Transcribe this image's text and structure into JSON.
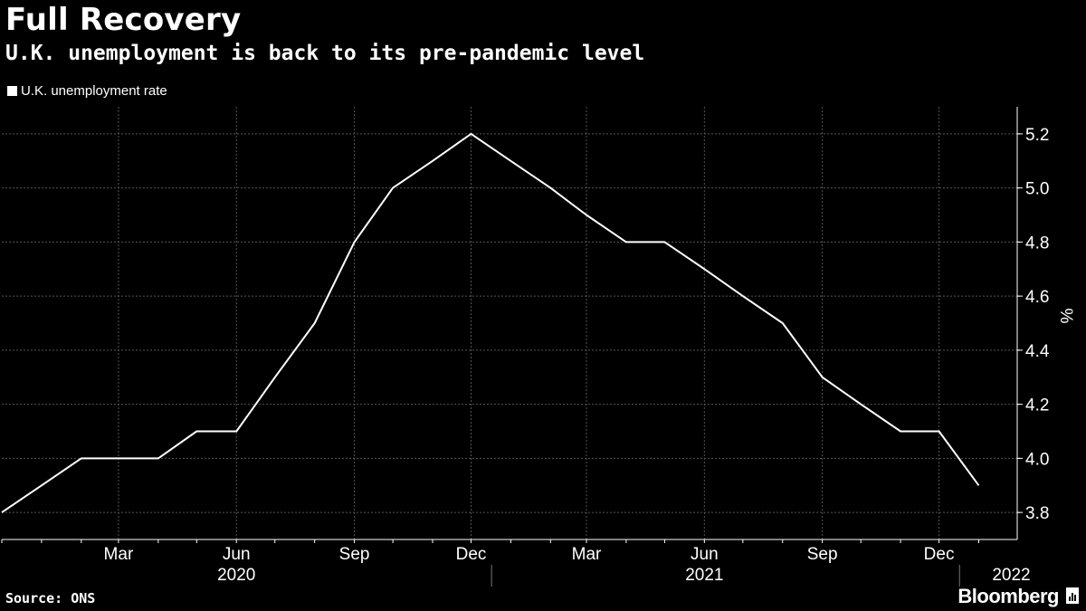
{
  "header": {
    "title": "Full Recovery",
    "subtitle": "U.K. unemployment is back to its pre-pandemic level"
  },
  "legend": {
    "label": "U.K. unemployment rate"
  },
  "footer": {
    "source": "Source: ONS",
    "brand": "Bloomberg"
  },
  "colors": {
    "background": "#000000",
    "line": "#ffffff",
    "grid": "#555555"
  },
  "chart_data": {
    "type": "line",
    "title": "Full Recovery",
    "subtitle": "U.K. unemployment is back to its pre-pandemic level",
    "ylabel": "%",
    "ylim": [
      3.7,
      5.3
    ],
    "yticks": [
      3.8,
      4.0,
      4.2,
      4.4,
      4.6,
      4.8,
      5.0,
      5.2
    ],
    "xlim": [
      "2019-12-01",
      "2022-01-31"
    ],
    "x_tick_labels": [
      {
        "label": "Mar",
        "date": "2020-03-01"
      },
      {
        "label": "Jun",
        "date": "2020-06-01"
      },
      {
        "label": "Sep",
        "date": "2020-09-01"
      },
      {
        "label": "Dec",
        "date": "2020-12-01"
      },
      {
        "label": "Mar",
        "date": "2021-03-01"
      },
      {
        "label": "Jun",
        "date": "2021-06-01"
      },
      {
        "label": "Sep",
        "date": "2021-09-01"
      },
      {
        "label": "Dec",
        "date": "2021-12-01"
      }
    ],
    "year_labels": [
      {
        "label": "2020",
        "date": "2020-06-01"
      },
      {
        "label": "2021",
        "date": "2021-06-01"
      },
      {
        "label": "2022",
        "date": "2022-01-01"
      }
    ],
    "year_separators": [
      "2021-01-01",
      "2022-01-01"
    ],
    "grid": true,
    "legend_position": "top-left",
    "series": [
      {
        "name": "U.K. unemployment rate",
        "color": "#ffffff",
        "x": [
          "2019-12-01",
          "2020-01-01",
          "2020-02-01",
          "2020-03-01",
          "2020-04-01",
          "2020-05-01",
          "2020-06-01",
          "2020-07-01",
          "2020-08-01",
          "2020-09-01",
          "2020-10-01",
          "2020-11-01",
          "2020-12-01",
          "2021-01-01",
          "2021-02-01",
          "2021-03-01",
          "2021-04-01",
          "2021-05-01",
          "2021-06-01",
          "2021-07-01",
          "2021-08-01",
          "2021-09-01",
          "2021-10-01",
          "2021-11-01",
          "2021-12-01",
          "2022-01-01"
        ],
        "y": [
          3.8,
          3.9,
          4.0,
          4.0,
          4.0,
          4.1,
          4.1,
          4.3,
          4.5,
          4.8,
          5.0,
          5.1,
          5.2,
          5.1,
          5.0,
          4.9,
          4.8,
          4.8,
          4.7,
          4.6,
          4.5,
          4.3,
          4.2,
          4.1,
          4.1,
          3.9
        ]
      }
    ]
  }
}
